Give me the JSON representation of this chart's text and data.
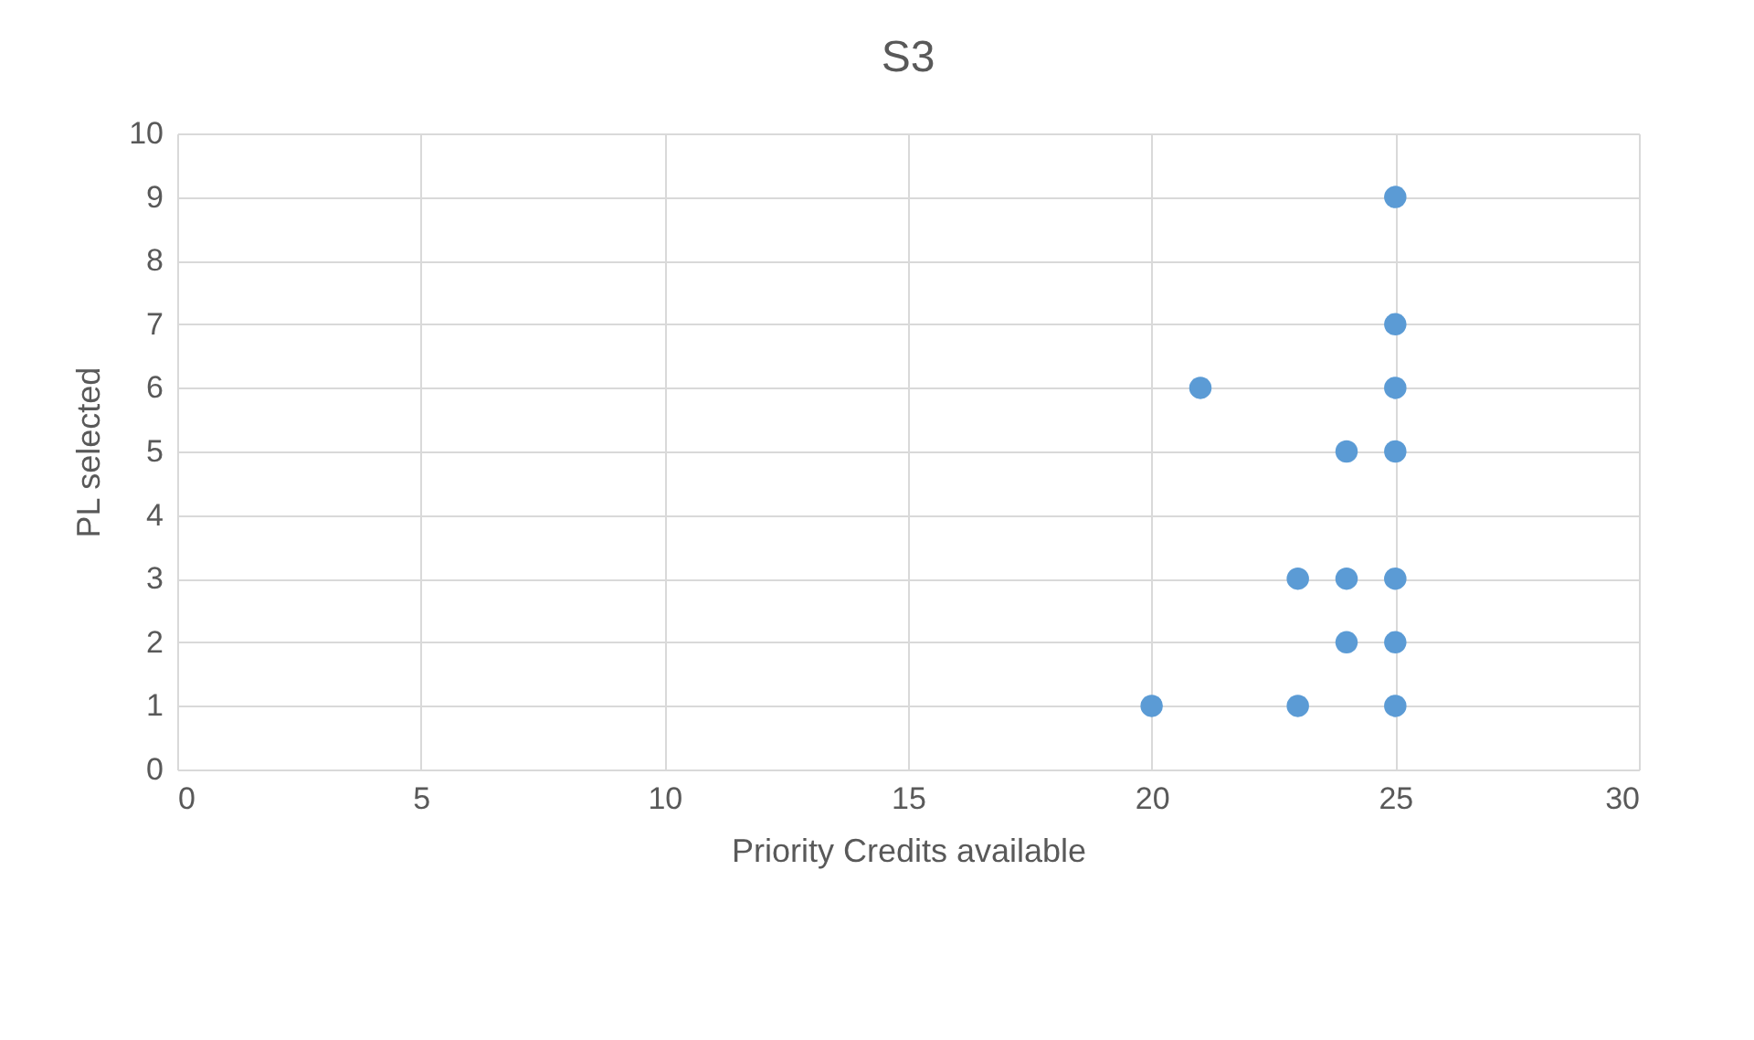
{
  "chart_data": {
    "type": "scatter",
    "title": "S3",
    "xlabel": "Priority Credits available",
    "ylabel": "PL selected",
    "x": [
      25,
      25,
      21,
      25,
      24,
      25,
      23,
      24,
      25,
      24,
      25,
      20,
      23,
      25
    ],
    "series": [
      {
        "color": "#5b9bd5",
        "values": [
          9,
          7,
          6,
          6,
          5,
          5,
          3,
          3,
          3,
          2,
          2,
          1,
          1,
          1
        ]
      }
    ],
    "xlim": [
      0,
      30
    ],
    "xticks": [
      0,
      5,
      10,
      15,
      20,
      25,
      30
    ],
    "ylim": [
      0,
      10
    ],
    "yticks": [
      0,
      1,
      2,
      3,
      4,
      5,
      6,
      7,
      8,
      9,
      10
    ],
    "grid": true,
    "marker": "circle"
  }
}
